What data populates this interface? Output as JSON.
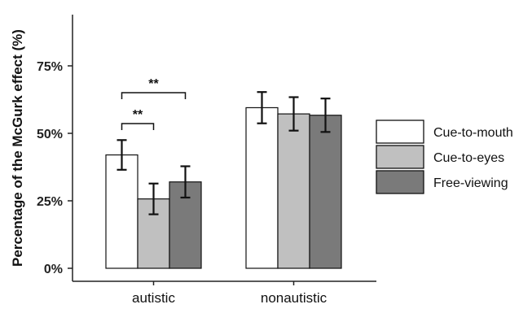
{
  "chart_data": {
    "type": "bar",
    "ylabel": "Percentage of the McGurk effect (%)",
    "xlabel": "",
    "categories": [
      "autistic",
      "nonautistic"
    ],
    "ylim": [
      0,
      0.95
    ],
    "yticks": [
      0,
      0.25,
      0.5,
      0.75
    ],
    "ytick_labels": [
      "0%",
      "25%",
      "50%",
      "75%"
    ],
    "grid": false,
    "legend_position": "right",
    "series": [
      {
        "name": "Cue-to-mouth",
        "color": "#ffffff",
        "values": [
          0.42,
          0.595
        ],
        "errors": [
          0.055,
          0.058
        ]
      },
      {
        "name": "Cue-to-eyes",
        "color": "#c0c0c0",
        "values": [
          0.257,
          0.572
        ],
        "errors": [
          0.057,
          0.062
        ]
      },
      {
        "name": "Free-viewing",
        "color": "#7a7a7a",
        "values": [
          0.32,
          0.567
        ],
        "errors": [
          0.058,
          0.062
        ]
      }
    ],
    "annotations": [
      {
        "text": "**",
        "category": "autistic",
        "from_series": 0,
        "to_series": 1
      },
      {
        "text": "**",
        "category": "autistic",
        "from_series": 0,
        "to_series": 2
      }
    ]
  }
}
